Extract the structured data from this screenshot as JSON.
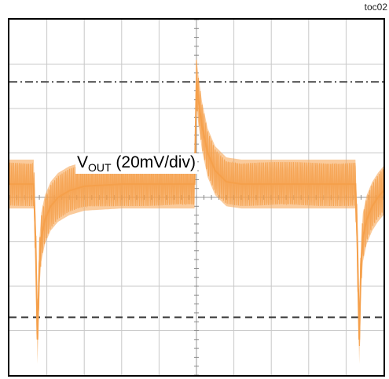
{
  "figure_label": "toc02",
  "trace": {
    "name": "V",
    "name_subscript": "OUT",
    "scale": "(20mV/div)",
    "color": "#f5a04b"
  },
  "chart_data": {
    "type": "line",
    "title": "",
    "xlabel": "",
    "ylabel": "",
    "grid": true,
    "x_divisions": 10,
    "y_divisions": 8,
    "xlim": [
      0,
      10
    ],
    "ylim": [
      -4,
      4
    ],
    "series": [
      {
        "name": "V_OUT (20mV/div)",
        "x": [
          0.0,
          0.65,
          0.7,
          0.75,
          0.8,
          0.85,
          0.95,
          1.1,
          1.3,
          1.6,
          2.0,
          3.0,
          4.0,
          4.95,
          5.0,
          5.05,
          5.15,
          5.3,
          5.5,
          5.8,
          6.2,
          7.0,
          8.0,
          9.25,
          9.3,
          9.35,
          9.4,
          9.45,
          9.55,
          9.7,
          9.85,
          10.0
        ],
        "y": [
          0.3,
          0.3,
          -1.0,
          -3.2,
          -1.5,
          -0.9,
          -0.5,
          -0.2,
          0.0,
          0.15,
          0.25,
          0.3,
          0.3,
          0.3,
          2.6,
          2.2,
          1.6,
          1.0,
          0.6,
          0.35,
          0.3,
          0.3,
          0.3,
          0.3,
          -1.0,
          -3.2,
          -1.5,
          -0.9,
          -0.5,
          -0.2,
          0.0,
          0.15
        ]
      }
    ],
    "ripple_band": 0.55,
    "reference_levels": [
      {
        "value": 2.6,
        "style": "dash-dot",
        "color": "#555555"
      },
      {
        "value": -2.7,
        "style": "dash",
        "color": "#333333"
      }
    ]
  }
}
